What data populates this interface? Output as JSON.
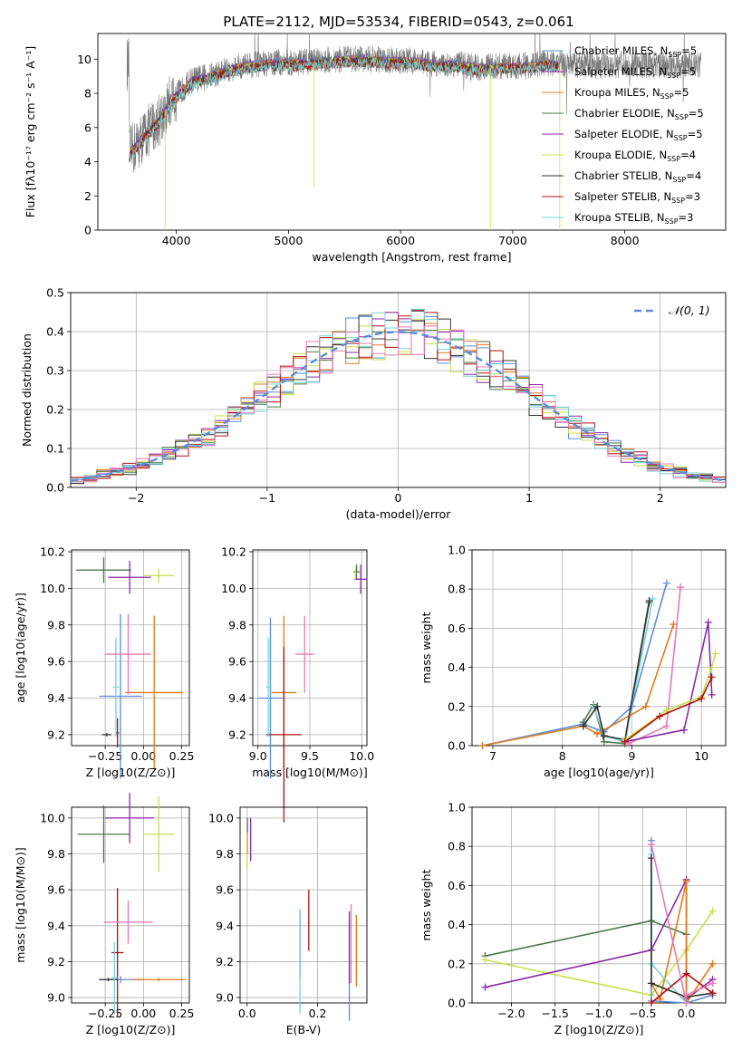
{
  "title": "PLATE=2112, MJD=53534, FIBERID=0543, z=0.061",
  "colors": {
    "c1": "#5b8ddb",
    "c2": "#e07b1a",
    "c3": "#4a7a4a",
    "c4": "#8a2aa8",
    "c5": "#c8e04a",
    "c6": "#333333",
    "c7": "#b01010",
    "c8": "#7ad4d4",
    "c9": "#e879b4",
    "data": "#7a7a7a",
    "normal": "#5b8ddb"
  },
  "chart_data": [
    {
      "id": "spectrum",
      "type": "line",
      "title": "PLATE=2112, MJD=53534, FIBERID=0543, z=0.061",
      "xlabel": "wavelength [Angstrom, rest frame]",
      "ylabel": "Flux [fλ10⁻¹⁷ erg cm⁻² s⁻¹ A⁻¹]",
      "xlim": [
        3300,
        8900
      ],
      "ylim": [
        0,
        11.5
      ],
      "xticks": [
        4000,
        5000,
        6000,
        7000,
        8000
      ],
      "yticks": [
        0,
        2,
        4,
        6,
        8,
        10
      ],
      "legend_position": "right",
      "legend": [
        {
          "label": "Chabrier MILES, N",
          "sub": "SSP",
          "suffix": "=5",
          "color": "#5b8ddb"
        },
        {
          "label": "Salpeter MILES, N",
          "sub": "SSP",
          "suffix": "=5",
          "color": "#8a2aa8"
        },
        {
          "label": "Kroupa MILES, N",
          "sub": "SSP",
          "suffix": "=5",
          "color": "#e07b1a"
        },
        {
          "label": "Chabrier ELODIE, N",
          "sub": "SSP",
          "suffix": "=5",
          "color": "#4a7a4a"
        },
        {
          "label": "Salpeter ELODIE, N",
          "sub": "SSP",
          "suffix": "=5",
          "color": "#8a2aa8"
        },
        {
          "label": "Kroupa ELODIE, N",
          "sub": "SSP",
          "suffix": "=4",
          "color": "#c8e04a"
        },
        {
          "label": "Chabrier STELIB, N",
          "sub": "SSP",
          "suffix": "=4",
          "color": "#333333"
        },
        {
          "label": "Salpeter STELIB, N",
          "sub": "SSP",
          "suffix": "=3",
          "color": "#b01010"
        },
        {
          "label": "Kroupa STELIB, N",
          "sub": "SSP",
          "suffix": "=3",
          "color": "#7ad4d4"
        }
      ],
      "model_continuum": {
        "x": [
          3580,
          3650,
          3750,
          3850,
          3950,
          4050,
          4150,
          4300,
          4500,
          4700,
          4900,
          5100,
          5300,
          5500,
          5700,
          5900,
          6100,
          6300,
          6500,
          6700,
          6900,
          7100,
          7300,
          7400
        ],
        "y": [
          4.5,
          5.0,
          5.8,
          6.5,
          7.6,
          8.2,
          8.8,
          9.0,
          9.5,
          9.7,
          9.8,
          9.8,
          9.9,
          10.0,
          10.0,
          9.9,
          9.9,
          9.7,
          9.7,
          9.5,
          9.6,
          9.6,
          9.8,
          9.7
        ]
      },
      "data_range": [
        3560,
        8680
      ]
    },
    {
      "id": "residuals",
      "type": "histogram",
      "xlabel": "(data-model)/error",
      "ylabel": "Normed distribution",
      "xlim": [
        -2.5,
        2.5
      ],
      "ylim": [
        0,
        0.5
      ],
      "xticks": [
        -2,
        -1,
        0,
        1,
        2
      ],
      "yticks": [
        0.0,
        0.1,
        0.2,
        0.3,
        0.4,
        0.5
      ],
      "legend_position": "top-right",
      "normal_curve_label": "𝒩(0, 1)",
      "bin_width": 0.1,
      "series_colors": [
        "#5b8ddb",
        "#e07b1a",
        "#4a7a4a",
        "#8a2aa8",
        "#c8e04a",
        "#333333",
        "#b01010",
        "#7ad4d4",
        "#e879b4"
      ]
    },
    {
      "id": "age-vs-Z",
      "type": "errorbar",
      "xlabel": "Z [log10(Z/Z⊙)]",
      "ylabel": "age [log10(age/yr)]",
      "xlim": [
        -0.47,
        0.3
      ],
      "ylim": [
        9.14,
        10.21
      ],
      "xticks": [
        -0.25,
        0.0,
        0.25
      ],
      "xticklabels": [
        "−0.25",
        "0.00",
        "0.25"
      ],
      "yticks": [
        9.2,
        9.4,
        9.6,
        9.8,
        10.0,
        10.2
      ],
      "points": [
        {
          "x": -0.15,
          "xerr": 0.14,
          "y": 9.41,
          "yerr": 0.45,
          "color": "#5b8ddb"
        },
        {
          "x": 0.07,
          "xerr": 0.19,
          "y": 9.43,
          "yerr": 0.42,
          "color": "#e07b1a"
        },
        {
          "x": -0.26,
          "xerr": 0.18,
          "y": 10.1,
          "yerr": 0.07,
          "color": "#4a7a4a"
        },
        {
          "x": -0.09,
          "xerr": 0.14,
          "y": 10.06,
          "yerr": 0.09,
          "color": "#8a2aa8"
        },
        {
          "x": 0.1,
          "xerr": 0.1,
          "y": 10.07,
          "yerr": 0.04,
          "color": "#c8e04a"
        },
        {
          "x": -0.24,
          "xerr": 0.03,
          "y": 9.2,
          "yerr": 0.01,
          "color": "#333333"
        },
        {
          "x": -0.17,
          "xerr": 0.01,
          "y": 9.21,
          "yerr": 0.08,
          "color": "#b01010"
        },
        {
          "x": -0.18,
          "xerr": 0.02,
          "y": 9.46,
          "yerr": 0.27,
          "color": "#7ad4d4"
        },
        {
          "x": -0.1,
          "xerr": 0.15,
          "y": 9.64,
          "yerr": 0.22,
          "color": "#e879b4"
        }
      ]
    },
    {
      "id": "age-vs-mass",
      "type": "errorbar",
      "xlabel": "mass [log10(M/M⊙)]",
      "ylabel": "",
      "xlim": [
        8.95,
        10.05
      ],
      "ylim": [
        9.14,
        10.21
      ],
      "xticks": [
        9.0,
        9.5,
        10.0
      ],
      "yticks": [
        9.2,
        9.4,
        9.6,
        9.8,
        10.0,
        10.2
      ],
      "points": [
        {
          "x": 9.12,
          "xerr": 0.12,
          "y": 9.4,
          "yerr": 0.44,
          "color": "#5b8ddb"
        },
        {
          "x": 9.25,
          "xerr": 0.12,
          "y": 9.43,
          "yerr": 0.42,
          "color": "#e07b1a"
        },
        {
          "x": 9.95,
          "xerr": 0.03,
          "y": 10.09,
          "yerr": 0.04,
          "color": "#4a7a4a"
        },
        {
          "x": 9.99,
          "xerr": 0.06,
          "y": 10.05,
          "yerr": 0.08,
          "color": "#8a2aa8"
        },
        {
          "x": 9.94,
          "xerr": 0.01,
          "y": 10.08,
          "yerr": 0.03,
          "color": "#c8e04a"
        },
        {
          "x": 9.1,
          "xerr": 0.01,
          "y": 9.2,
          "yerr": 0.01,
          "color": "#333333"
        },
        {
          "x": 9.25,
          "xerr": 0.17,
          "y": 9.2,
          "yerr": 0.48,
          "color": "#b01010"
        },
        {
          "x": 9.1,
          "xerr": 0.02,
          "y": 9.46,
          "yerr": 0.27,
          "color": "#7ad4d4"
        },
        {
          "x": 9.45,
          "xerr": 0.09,
          "y": 9.64,
          "yerr": 0.21,
          "color": "#e879b4"
        }
      ]
    },
    {
      "id": "massweight-vs-age",
      "type": "line",
      "xlabel": "age [log10(age/yr)]",
      "ylabel": "mass weight",
      "xlim": [
        6.7,
        10.35
      ],
      "ylim": [
        0,
        1.0
      ],
      "xticks": [
        7,
        8,
        9,
        10
      ],
      "yticks": [
        0.0,
        0.2,
        0.4,
        0.6,
        0.8,
        1.0
      ],
      "series": [
        {
          "color": "#4a7a4a",
          "x": [
            8.3,
            8.45,
            8.6,
            8.9,
            9.25
          ],
          "y": [
            0.12,
            0.21,
            0.02,
            0.01,
            0.73
          ]
        },
        {
          "color": "#7ad4d4",
          "x": [
            8.45,
            8.6,
            8.9,
            9.3
          ],
          "y": [
            0.2,
            0.05,
            0.02,
            0.75
          ]
        },
        {
          "color": "#5b8ddb",
          "x": [
            6.85,
            8.3,
            8.6,
            9.0,
            9.5
          ],
          "y": [
            0.0,
            0.11,
            0.07,
            0.2,
            0.83
          ]
        },
        {
          "color": "#e07b1a",
          "x": [
            6.85,
            8.3,
            8.5,
            9.2,
            9.6
          ],
          "y": [
            0.0,
            0.1,
            0.06,
            0.2,
            0.62
          ]
        },
        {
          "color": "#333333",
          "x": [
            8.3,
            8.5,
            8.6,
            8.9,
            9.25
          ],
          "y": [
            0.1,
            0.2,
            0.05,
            0.03,
            0.74
          ]
        },
        {
          "color": "#e879b4",
          "x": [
            8.95,
            9.5,
            9.7
          ],
          "y": [
            0.01,
            0.1,
            0.81
          ]
        },
        {
          "color": "#8a2aa8",
          "x": [
            8.9,
            9.75,
            10.1,
            10.15
          ],
          "y": [
            0.02,
            0.08,
            0.63,
            0.26
          ]
        },
        {
          "color": "#c8e04a",
          "x": [
            8.9,
            9.5,
            10.0,
            10.15,
            10.2
          ],
          "y": [
            0.03,
            0.18,
            0.25,
            0.4,
            0.47
          ]
        },
        {
          "color": "#b01010",
          "x": [
            8.9,
            9.4,
            10.0,
            10.15
          ],
          "y": [
            0.02,
            0.15,
            0.24,
            0.35
          ]
        }
      ]
    },
    {
      "id": "mass-vs-Z",
      "type": "errorbar",
      "xlabel": "Z [log10(Z/Z⊙)]",
      "ylabel": "mass [log10(M/M⊙)]",
      "xlim": [
        -0.47,
        0.3
      ],
      "ylim": [
        8.97,
        10.06
      ],
      "xticks": [
        -0.25,
        0.0,
        0.25
      ],
      "xticklabels": [
        "−0.25",
        "0.00",
        "0.25"
      ],
      "yticks": [
        9.0,
        9.2,
        9.4,
        9.6,
        9.8,
        10.0
      ],
      "points": [
        {
          "x": -0.15,
          "xerr": 0.14,
          "y": 9.1,
          "yerr": 0.02,
          "color": "#5b8ddb"
        },
        {
          "x": 0.1,
          "xerr": 0.18,
          "y": 9.1,
          "yerr": 0.01,
          "color": "#e07b1a"
        },
        {
          "x": -0.26,
          "xerr": 0.17,
          "y": 9.91,
          "yerr": 0.16,
          "color": "#4a7a4a"
        },
        {
          "x": -0.09,
          "xerr": 0.16,
          "y": 10.0,
          "yerr": 0.14,
          "color": "#8a2aa8"
        },
        {
          "x": 0.1,
          "xerr": 0.1,
          "y": 9.91,
          "yerr": 0.21,
          "color": "#c8e04a"
        },
        {
          "x": -0.23,
          "xerr": 0.06,
          "y": 9.1,
          "yerr": 0.01,
          "color": "#333333"
        },
        {
          "x": -0.17,
          "xerr": 0.04,
          "y": 9.25,
          "yerr": 0.36,
          "color": "#b01010"
        },
        {
          "x": -0.19,
          "xerr": 0.02,
          "y": 9.11,
          "yerr": 0.2,
          "color": "#7ad4d4"
        },
        {
          "x": -0.1,
          "xerr": 0.16,
          "y": 9.42,
          "yerr": 0.12,
          "color": "#e879b4"
        }
      ]
    },
    {
      "id": "mass-vs-EBV",
      "type": "errorbar",
      "xlabel": "E(B-V)",
      "ylabel": "",
      "xlim": [
        -0.02,
        0.34
      ],
      "ylim": [
        8.97,
        10.06
      ],
      "xticks": [
        0.0,
        0.2
      ],
      "yticks": [
        9.0,
        9.2,
        9.4,
        9.6,
        9.8,
        10.0
      ],
      "points": [
        {
          "x": 0.29,
          "yerr": 0.28,
          "y": 9.15,
          "color": "#5b8ddb"
        },
        {
          "x": 0.31,
          "yerr": 0.2,
          "y": 9.26,
          "color": "#e07b1a"
        },
        {
          "x": 0.001,
          "yerr": 0.1,
          "y": 9.9,
          "color": "#4a7a4a"
        },
        {
          "x": 0.29,
          "yerr": 0.2,
          "y": 9.28,
          "color": "#8a2aa8"
        },
        {
          "x": 0.0,
          "yerr": 0.1,
          "y": 9.82,
          "color": "#c8e04a"
        },
        {
          "x": 0.15,
          "yerr": 0.19,
          "y": 9.3,
          "color": "#333333"
        },
        {
          "x": 0.175,
          "yerr": 0.17,
          "y": 9.43,
          "color": "#b01010"
        },
        {
          "x": 0.15,
          "yerr": 0.29,
          "y": 9.2,
          "color": "#7ad4d4"
        },
        {
          "x": 0.295,
          "yerr": 0.22,
          "y": 9.3,
          "color": "#e879b4"
        },
        {
          "x": 0.01,
          "yerr": 0.12,
          "y": 9.88,
          "color": "#8a2aa8"
        }
      ]
    },
    {
      "id": "massweight-vs-Z",
      "type": "line",
      "xlabel": "Z [log10(Z/Z⊙)]",
      "ylabel": "mass weight",
      "xlim": [
        -2.45,
        0.45
      ],
      "ylim": [
        0,
        1.0
      ],
      "xticks": [
        -2.0,
        -1.5,
        -1.0,
        -0.5,
        0.0
      ],
      "xticklabels": [
        "−2.0",
        "−1.5",
        "−1.0",
        "−0.5",
        "0.0"
      ],
      "yticks": [
        0.0,
        0.2,
        0.4,
        0.6,
        0.8,
        1.0
      ],
      "series": [
        {
          "color": "#4a7a4a",
          "x": [
            -2.3,
            -0.4,
            0.0
          ],
          "y": [
            0.24,
            0.42,
            0.35
          ]
        },
        {
          "color": "#c8e04a",
          "x": [
            -2.3,
            -0.4,
            0.0,
            0.3
          ],
          "y": [
            0.22,
            0.04,
            0.27,
            0.47
          ]
        },
        {
          "color": "#8a2aa8",
          "x": [
            -2.3,
            -0.4,
            0.0,
            0.0,
            0.3
          ],
          "y": [
            0.08,
            0.27,
            0.63,
            0.02,
            0.12
          ]
        },
        {
          "color": "#5b8ddb",
          "x": [
            -0.4,
            -0.4,
            0.0,
            0.3
          ],
          "y": [
            0.83,
            0.01,
            0.0,
            0.04
          ]
        },
        {
          "color": "#e07b1a",
          "x": [
            -0.4,
            -0.3,
            0.0,
            0.0,
            0.3
          ],
          "y": [
            0.1,
            0.02,
            0.62,
            0.0,
            0.2
          ]
        },
        {
          "color": "#7ad4d4",
          "x": [
            -0.4,
            -0.4,
            0.0
          ],
          "y": [
            0.76,
            0.2,
            0.0
          ]
        },
        {
          "color": "#333333",
          "x": [
            -0.4,
            -0.4,
            0.0,
            0.3
          ],
          "y": [
            0.74,
            0.1,
            0.03,
            0.05
          ]
        },
        {
          "color": "#b01010",
          "x": [
            -0.4,
            0.0,
            0.3
          ],
          "y": [
            0.0,
            0.15,
            0.05
          ]
        },
        {
          "color": "#e879b4",
          "x": [
            -0.4,
            0.0,
            0.0,
            0.3
          ],
          "y": [
            0.81,
            0.0,
            0.04,
            0.1
          ]
        }
      ]
    }
  ]
}
